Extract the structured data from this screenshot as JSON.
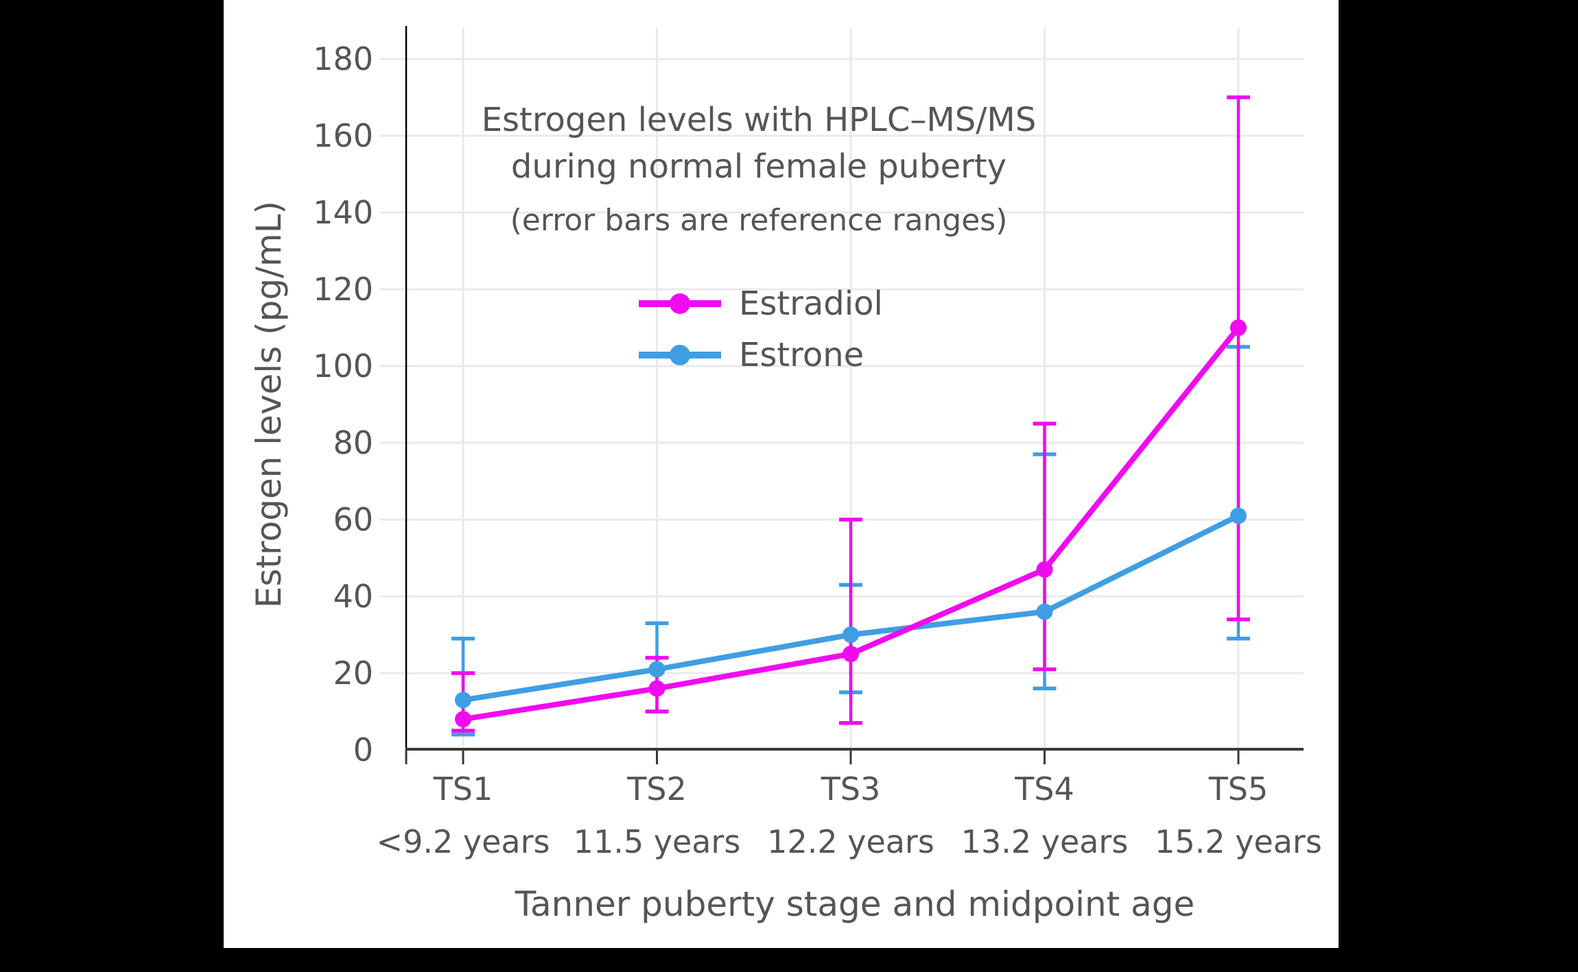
{
  "page": {
    "background": "#000000"
  },
  "colors": {
    "text": "#555555",
    "grid": "#EAEAEA",
    "x_axis": "#383838",
    "y_axis": "#000000",
    "canvas_bg": "#FFFFFF"
  },
  "chart_data": {
    "type": "line",
    "title": "Estrogen levels with HPLC–MS/MS during normal female puberty",
    "title_lines": [
      "Estrogen levels with HPLC–MS/MS",
      "during normal female puberty"
    ],
    "subtitle": "(error bars are reference ranges)",
    "xlabel": "Tanner puberty stage and midpoint age",
    "ylabel": "Estrogen levels (pg/mL)",
    "categories": [
      "TS1",
      "TS2",
      "TS3",
      "TS4",
      "TS5"
    ],
    "category_ages": [
      "<9.2 years",
      "11.5 years",
      "12.2 years",
      "13.2 years",
      "15.2 years"
    ],
    "yticks": [
      0,
      20,
      40,
      60,
      80,
      100,
      120,
      140,
      160,
      180
    ],
    "ylim": [
      0,
      188
    ],
    "grid": true,
    "legend_position": "inside top-center",
    "error_bars": "reference ranges",
    "series": [
      {
        "name": "Estradiol",
        "color": "#F00AF0",
        "values": [
          8,
          16,
          25,
          47,
          110
        ],
        "range_low": [
          5,
          10,
          7,
          21,
          34
        ],
        "range_high": [
          20,
          24,
          60,
          85,
          170
        ]
      },
      {
        "name": "Estrone",
        "color": "#3F9EE3",
        "values": [
          13,
          21,
          30,
          36,
          61
        ],
        "range_low": [
          4,
          10,
          15,
          16,
          29
        ],
        "range_high": [
          29,
          33,
          43,
          77,
          105
        ]
      }
    ]
  }
}
